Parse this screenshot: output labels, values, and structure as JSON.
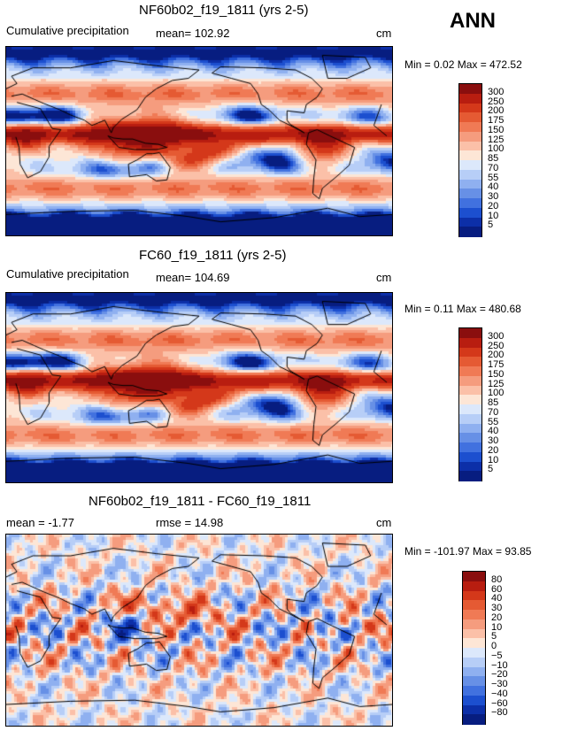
{
  "season": "ANN",
  "chart_data": [
    {
      "type": "heatmap",
      "title": "NF60b02_f19_1811 (yrs 2-5)",
      "subtitle": "Cumulative precipitation",
      "mean_text": "mean= 102.92",
      "units": "cm",
      "minmax_text": "Min =    0.02  Max =  472.52",
      "min": 0.02,
      "max": 472.52,
      "colorbar_ticks": [
        "300",
        "250",
        "200",
        "175",
        "150",
        "125",
        "100",
        "85",
        "70",
        "55",
        "40",
        "30",
        "20",
        "10",
        "5"
      ],
      "colors": [
        "#8a0e0e",
        "#b81d10",
        "#d4381a",
        "#e55a33",
        "#f07a55",
        "#f59c7e",
        "#fbc0a8",
        "#fde6d6",
        "#dce8fb",
        "#b7cef7",
        "#8fb0f0",
        "#6790e6",
        "#4171df",
        "#1c4fcf",
        "#0c2fa8",
        "#071d80"
      ],
      "mean": 102.92
    },
    {
      "type": "heatmap",
      "title": "FC60_f19_1811 (yrs 2-5)",
      "subtitle": "Cumulative precipitation",
      "mean_text": "mean= 104.69",
      "units": "cm",
      "minmax_text": "Min =    0.11  Max =  480.68",
      "min": 0.11,
      "max": 480.68,
      "colorbar_ticks": [
        "300",
        "250",
        "200",
        "175",
        "150",
        "125",
        "100",
        "85",
        "70",
        "55",
        "40",
        "30",
        "20",
        "10",
        "5"
      ],
      "colors": [
        "#8a0e0e",
        "#b81d10",
        "#d4381a",
        "#e55a33",
        "#f07a55",
        "#f59c7e",
        "#fbc0a8",
        "#fde6d6",
        "#dce8fb",
        "#b7cef7",
        "#8fb0f0",
        "#6790e6",
        "#4171df",
        "#1c4fcf",
        "#0c2fa8",
        "#071d80"
      ],
      "mean": 104.69
    },
    {
      "type": "heatmap",
      "title": "NF60b02_f19_1811 - FC60_f19_1811",
      "mean_text": "mean =   -1.77",
      "rmse_text": "rmse =   14.98",
      "units": "cm",
      "minmax_text": "Min = -101.97  Max =   93.85",
      "min": -101.97,
      "max": 93.85,
      "colorbar_ticks": [
        "80",
        "60",
        "40",
        "30",
        "20",
        "10",
        "5",
        "0",
        "−5",
        "−10",
        "−20",
        "−30",
        "−40",
        "−60",
        "−80"
      ],
      "colors": [
        "#8a0e0e",
        "#b81d10",
        "#d4381a",
        "#e55a33",
        "#f07a55",
        "#f59c7e",
        "#fbc0a8",
        "#fde6d6",
        "#dce8fb",
        "#b7cef7",
        "#8fb0f0",
        "#6790e6",
        "#4171df",
        "#1c4fcf",
        "#0c2fa8",
        "#071d80"
      ],
      "mean": -1.77,
      "rmse": 14.98
    }
  ]
}
